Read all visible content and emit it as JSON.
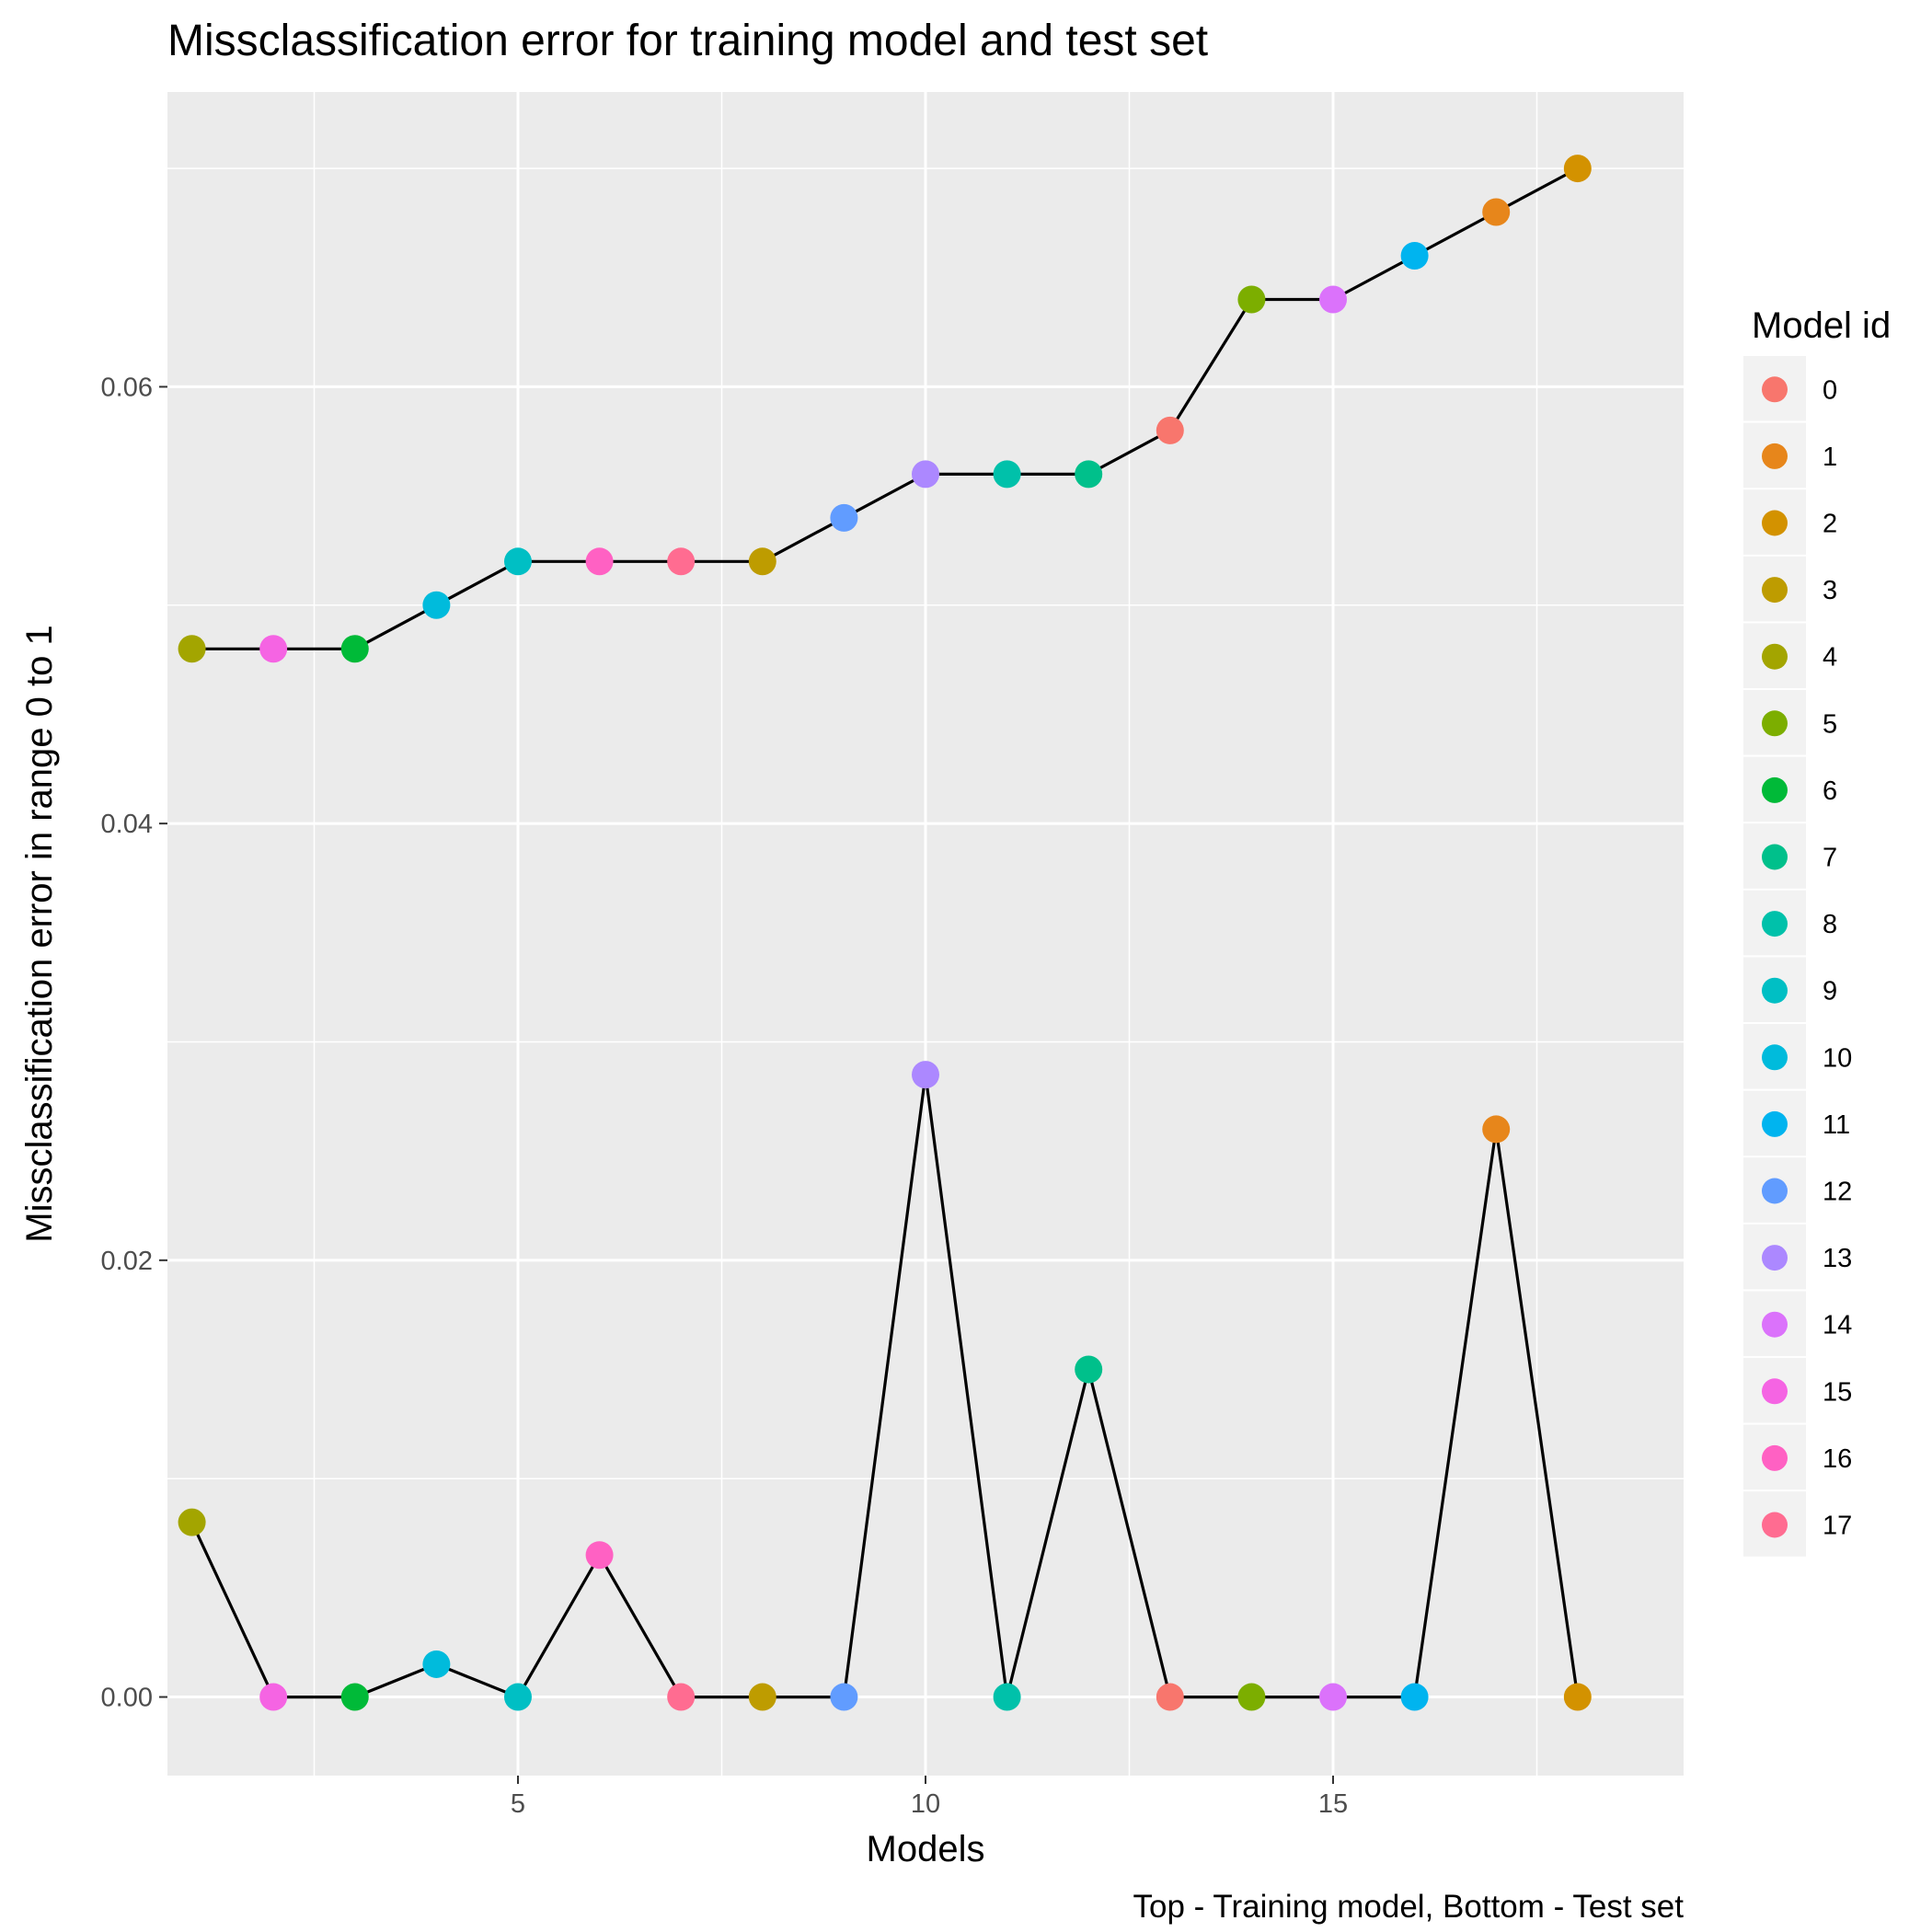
{
  "chart_data": {
    "type": "line",
    "title": "Missclassification error for training model and test set",
    "xlabel": "Models",
    "ylabel": "Missclassification error in range 0 to 1",
    "caption": "Top - Training model, Bottom - Test set",
    "legend_title": "Model id",
    "legend_position": "right",
    "grid": true,
    "xlim": [
      0.7,
      19.3
    ],
    "ylim": [
      -0.0036,
      0.0735
    ],
    "x_ticks": [
      5,
      10,
      15
    ],
    "y_ticks": [
      0.0,
      0.02,
      0.04,
      0.06
    ],
    "y_tick_labels": [
      "0.00",
      "0.02",
      "0.04",
      "0.06"
    ],
    "x_ticks_minor": [
      2.5,
      7.5,
      12.5,
      17.5
    ],
    "y_ticks_minor": [
      0.01,
      0.03,
      0.05,
      0.07
    ],
    "model_ids": [
      "0",
      "1",
      "2",
      "3",
      "4",
      "5",
      "6",
      "7",
      "8",
      "9",
      "10",
      "11",
      "12",
      "13",
      "14",
      "15",
      "16",
      "17"
    ],
    "model_colors": [
      "#F8766D",
      "#E7861B",
      "#D39200",
      "#BE9C00",
      "#A3A500",
      "#7CAE00",
      "#00BA38",
      "#00C08B",
      "#00C1AA",
      "#00BFC4",
      "#00BBDC",
      "#00B4EF",
      "#619CFF",
      "#AC88FF",
      "#DB72FB",
      "#F564E3",
      "#FF61C3",
      "#FF6C91"
    ],
    "series": [
      {
        "values": [
          {
            "x": 1,
            "y": 0.048,
            "model_id": "4"
          },
          {
            "x": 2,
            "y": 0.048,
            "model_id": "15"
          },
          {
            "x": 3,
            "y": 0.048,
            "model_id": "6"
          },
          {
            "x": 4,
            "y": 0.05,
            "model_id": "10"
          },
          {
            "x": 5,
            "y": 0.052,
            "model_id": "9"
          },
          {
            "x": 6,
            "y": 0.052,
            "model_id": "16"
          },
          {
            "x": 7,
            "y": 0.052,
            "model_id": "17"
          },
          {
            "x": 8,
            "y": 0.052,
            "model_id": "3"
          },
          {
            "x": 9,
            "y": 0.054,
            "model_id": "12"
          },
          {
            "x": 10,
            "y": 0.056,
            "model_id": "13"
          },
          {
            "x": 11,
            "y": 0.056,
            "model_id": "8"
          },
          {
            "x": 12,
            "y": 0.056,
            "model_id": "7"
          },
          {
            "x": 13,
            "y": 0.058,
            "model_id": "0"
          },
          {
            "x": 14,
            "y": 0.064,
            "model_id": "5"
          },
          {
            "x": 15,
            "y": 0.064,
            "model_id": "14"
          },
          {
            "x": 16,
            "y": 0.066,
            "model_id": "11"
          },
          {
            "x": 17,
            "y": 0.068,
            "model_id": "1"
          },
          {
            "x": 18,
            "y": 0.07,
            "model_id": "2"
          }
        ]
      },
      {
        "values": [
          {
            "x": 1,
            "y": 0.008,
            "model_id": "4"
          },
          {
            "x": 2,
            "y": 0.0,
            "model_id": "15"
          },
          {
            "x": 3,
            "y": 0.0,
            "model_id": "6"
          },
          {
            "x": 4,
            "y": 0.0015,
            "model_id": "10"
          },
          {
            "x": 5,
            "y": 0.0,
            "model_id": "9"
          },
          {
            "x": 6,
            "y": 0.0065,
            "model_id": "16"
          },
          {
            "x": 7,
            "y": 0.0,
            "model_id": "17"
          },
          {
            "x": 8,
            "y": 0.0,
            "model_id": "3"
          },
          {
            "x": 9,
            "y": 0.0,
            "model_id": "12"
          },
          {
            "x": 10,
            "y": 0.0285,
            "model_id": "13"
          },
          {
            "x": 11,
            "y": 0.0,
            "model_id": "8"
          },
          {
            "x": 12,
            "y": 0.015,
            "model_id": "7"
          },
          {
            "x": 13,
            "y": 0.0,
            "model_id": "0"
          },
          {
            "x": 14,
            "y": 0.0,
            "model_id": "5"
          },
          {
            "x": 15,
            "y": 0.0,
            "model_id": "14"
          },
          {
            "x": 16,
            "y": 0.0,
            "model_id": "11"
          },
          {
            "x": 17,
            "y": 0.026,
            "model_id": "1"
          },
          {
            "x": 18,
            "y": 0.0,
            "model_id": "2"
          }
        ]
      }
    ]
  }
}
